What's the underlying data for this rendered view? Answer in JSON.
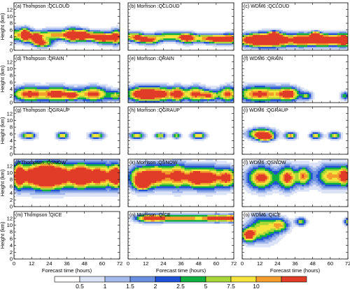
{
  "chart_data": {
    "type": "heatmap",
    "layout": {
      "rows": 5,
      "cols": 3
    },
    "x": {
      "label": "Forecast time (hours)",
      "range": [
        0,
        72
      ],
      "ticks": [
        0,
        12,
        24,
        36,
        48,
        60,
        72
      ]
    },
    "y": {
      "label": "Height (km)",
      "range": [
        0,
        14
      ],
      "ticks": [
        0,
        2,
        4,
        6,
        8,
        10,
        12
      ]
    },
    "colorbar": {
      "labels": [
        "0.5",
        "1",
        "1.5",
        "2",
        "2.5",
        "5",
        "7.5",
        "10"
      ],
      "colors": [
        "#ffffff",
        "#dce3f7",
        "#a4b9ec",
        "#6b8fe0",
        "#1f50d6",
        "#10b040",
        "#a8d838",
        "#f4e43c",
        "#f49c2c",
        "#e03c28"
      ]
    },
    "panels": [
      {
        "title": "(a) Thompson :QCLOUD",
        "blobs": [
          [
            1.5,
            4.5,
            9,
            0.75,
            2
          ],
          [
            8,
            4.5,
            3,
            0.9,
            2
          ],
          [
            15,
            3.5,
            4,
            1.0,
            1.6
          ],
          [
            28,
            4.5,
            14,
            0.85,
            1.6
          ],
          [
            40,
            4.5,
            5,
            0.9,
            2
          ],
          [
            52,
            4.2,
            10,
            0.8,
            1.6
          ],
          [
            62,
            3.5,
            7,
            0.95,
            1.6
          ],
          [
            70,
            4,
            4,
            0.9,
            2.2
          ],
          [
            47,
            4.5,
            3,
            0.75,
            1.5
          ],
          [
            20,
            2.0,
            6,
            0.9,
            1.1
          ]
        ]
      },
      {
        "title": "(b) Morrison :QCLOUD",
        "blobs": [
          [
            2,
            4,
            7,
            0.75,
            1.5
          ],
          [
            8,
            3.5,
            4,
            0.7,
            1.2
          ],
          [
            15,
            3,
            6,
            0.85,
            1.3
          ],
          [
            28,
            4,
            12,
            0.75,
            1.4
          ],
          [
            40,
            3.5,
            5,
            0.8,
            1.5
          ],
          [
            52,
            3.5,
            11,
            0.75,
            1.4
          ],
          [
            63,
            3.2,
            8,
            0.8,
            1.3
          ],
          [
            70,
            3.5,
            5,
            0.75,
            1.5
          ]
        ]
      },
      {
        "title": "(c) WDM6 :QCLOUD",
        "blobs": [
          [
            5,
            3,
            9,
            0.98,
            1.8
          ],
          [
            16,
            3,
            9,
            1.25,
            2
          ],
          [
            28,
            3,
            9,
            0.98,
            2
          ],
          [
            40,
            3,
            6,
            0.95,
            1.8
          ],
          [
            50,
            3,
            9,
            0.98,
            1.8
          ],
          [
            62,
            3,
            10,
            1.0,
            1.8
          ],
          [
            70,
            3,
            5,
            0.95,
            1.8
          ],
          [
            22,
            4.5,
            3,
            1.1,
            1
          ],
          [
            50,
            4.5,
            3,
            1.0,
            1
          ]
        ]
      },
      {
        "title": "(d) Thompson :QRAIN",
        "blobs": [
          [
            10,
            2.5,
            12,
            1.0,
            2.2
          ],
          [
            30,
            2.5,
            10,
            1.0,
            2.2
          ],
          [
            54,
            2.5,
            11,
            1.0,
            2.2
          ],
          [
            70,
            2,
            5,
            0.6,
            1.5
          ],
          [
            40,
            2,
            4,
            0.65,
            1.2
          ]
        ]
      },
      {
        "title": "(e) Morrison :QRAIN",
        "blobs": [
          [
            8,
            2.5,
            10,
            0.95,
            2.2
          ],
          [
            22,
            2.5,
            12,
            1.0,
            2.2
          ],
          [
            34,
            2.5,
            4,
            0.8,
            2
          ],
          [
            46,
            2.5,
            8,
            0.98,
            2.2
          ],
          [
            56,
            2,
            5,
            0.7,
            1.5
          ],
          [
            68,
            2.5,
            7,
            0.98,
            2.2
          ]
        ]
      },
      {
        "title": "(f) WDM6 :QRAIN",
        "blobs": [
          [
            12,
            2.5,
            16,
            1.0,
            2.4
          ],
          [
            32,
            2.5,
            7,
            0.98,
            2
          ],
          [
            44,
            2,
            4,
            0.6,
            1.2
          ],
          [
            70,
            2,
            3,
            0.6,
            1.2
          ]
        ]
      },
      {
        "title": "(g) Thompson :QGRAUP",
        "blobs": [
          [
            10,
            5.5,
            5,
            0.85,
            1
          ],
          [
            33,
            5.5,
            4,
            0.85,
            1
          ],
          [
            56,
            5.5,
            5,
            0.85,
            1
          ]
        ]
      },
      {
        "title": "(h) Morrison :QGRAUP",
        "blobs": [
          [
            6,
            5.5,
            5,
            0.82,
            1
          ],
          [
            22,
            5.5,
            4,
            0.75,
            0.8
          ],
          [
            33,
            5.5,
            3,
            0.75,
            0.8
          ],
          [
            48,
            5.5,
            5,
            0.85,
            1
          ]
        ]
      },
      {
        "title": "(i) WDM6 :QGRAUP",
        "blobs": [
          [
            13,
            6,
            9,
            1.05,
            1.6
          ],
          [
            16,
            5,
            5,
            1.0,
            1
          ],
          [
            33,
            5.5,
            4,
            0.85,
            1
          ],
          [
            50,
            5.5,
            4,
            0.8,
            1
          ],
          [
            63,
            5.5,
            4,
            0.8,
            1
          ]
        ]
      },
      {
        "title": "(j) Thompson :QSNOW",
        "blobs": [
          [
            12,
            9,
            12,
            1.1,
            4
          ],
          [
            32,
            9,
            10,
            1.1,
            4
          ],
          [
            58,
            9,
            12,
            1.1,
            4
          ],
          [
            22,
            9,
            6,
            0.95,
            3.5
          ],
          [
            45,
            9,
            6,
            0.95,
            3.5
          ],
          [
            70,
            9,
            4,
            0.95,
            3.5
          ],
          [
            3,
            9,
            3,
            0.9,
            3.5
          ]
        ]
      },
      {
        "title": "(k) Morrison :QSNOW",
        "blobs": [
          [
            8,
            8.5,
            8,
            1.0,
            3.5
          ],
          [
            20,
            9,
            8,
            0.98,
            3.5
          ],
          [
            34,
            9,
            8,
            1.0,
            3.8
          ],
          [
            46,
            8.5,
            6,
            0.95,
            3
          ],
          [
            56,
            8.5,
            8,
            0.98,
            3.5
          ],
          [
            68,
            8.5,
            6,
            0.95,
            3
          ],
          [
            10,
            6.5,
            4,
            1.05,
            1.2
          ]
        ]
      },
      {
        "title": "(l) WDM6 :QSNOW",
        "blobs": [
          [
            13,
            8.5,
            10,
            1.0,
            3.5
          ],
          [
            31,
            8.5,
            6,
            0.98,
            3.5
          ],
          [
            42,
            9,
            5,
            0.85,
            3
          ],
          [
            60,
            9,
            10,
            0.85,
            3.5
          ],
          [
            70,
            9,
            4,
            0.82,
            3
          ]
        ]
      },
      {
        "title": "(m) Thompson :QICE",
        "blobs": []
      },
      {
        "title": "(n) Morrison :QICE",
        "blobs": [
          [
            15,
            12,
            10,
            0.95,
            1.2
          ],
          [
            38,
            12,
            20,
            0.9,
            1.1
          ],
          [
            62,
            12,
            10,
            0.88,
            1.1
          ],
          [
            71,
            12,
            4,
            0.9,
            1
          ]
        ]
      },
      {
        "title": "(o) WDM6 :QICE",
        "blobs": [
          [
            4,
            7,
            5,
            0.95,
            2
          ],
          [
            14,
            9,
            10,
            0.75,
            4
          ],
          [
            26,
            10,
            6,
            0.7,
            2
          ],
          [
            40,
            11,
            4,
            0.68,
            1.2
          ],
          [
            72,
            11,
            3,
            0.75,
            1
          ]
        ]
      }
    ]
  }
}
